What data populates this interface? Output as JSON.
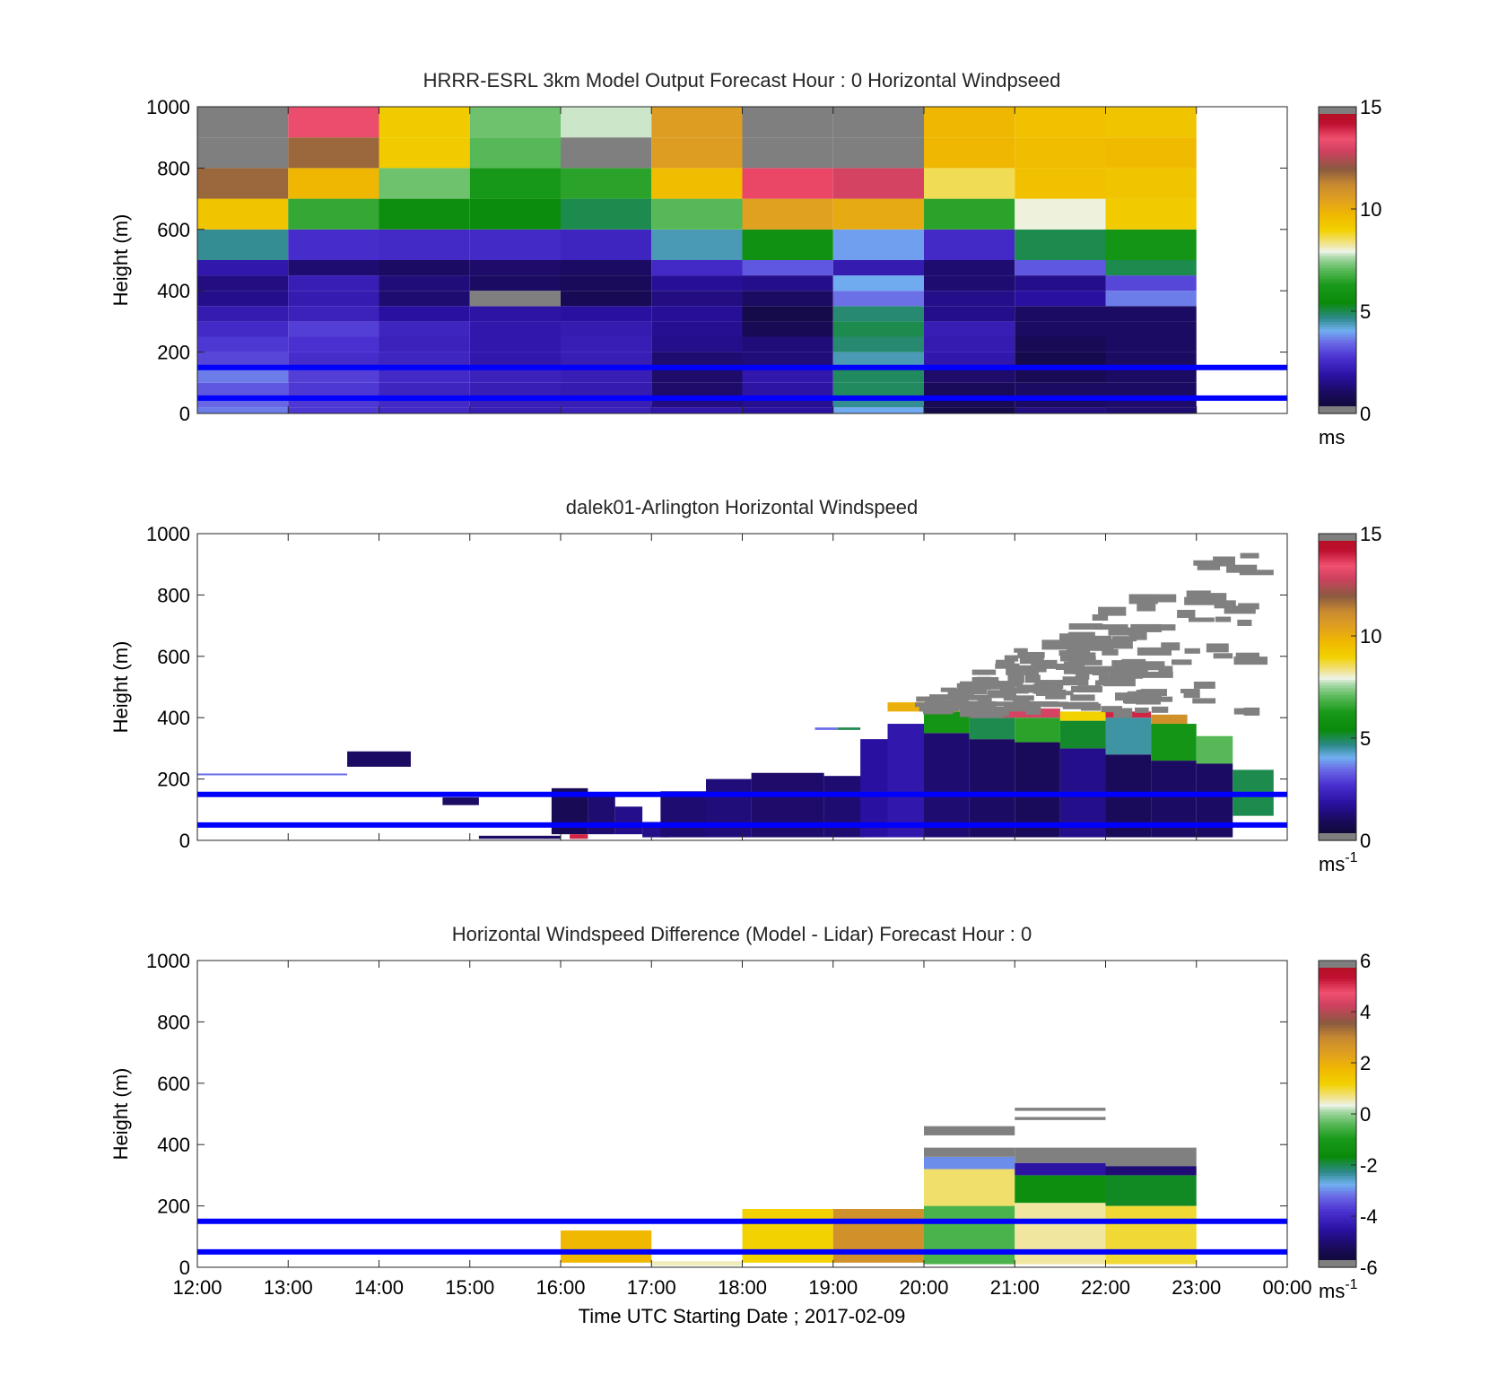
{
  "figure": {
    "xlabel": "Time UTC  Starting Date ; 2017-02-09",
    "x_tick_labels": [
      "12:00",
      "13:00",
      "14:00",
      "15:00",
      "16:00",
      "17:00",
      "18:00",
      "19:00",
      "20:00",
      "21:00",
      "22:00",
      "23:00",
      "00:00"
    ],
    "y_tick_labels": [
      "0",
      "200",
      "400",
      "600",
      "800",
      "1000"
    ],
    "ylabel": "Height (m)"
  },
  "chart_data": [
    {
      "type": "heatmap",
      "title": "HRRR-ESRL 3km Model Output   Forecast Hour : 0 Horizontal Windpseed",
      "ylabel": "Height (m)",
      "xlim": [
        12,
        24
      ],
      "ylim": [
        0,
        1000
      ],
      "colorbar": {
        "min": 0,
        "max": 15,
        "ticks": [
          "0",
          "5",
          "10",
          "15"
        ],
        "unit": "ms"
      },
      "reference_lines_m": [
        150,
        50
      ],
      "time_columns_h": [
        12,
        13,
        14,
        15,
        16,
        17,
        18,
        19,
        20,
        21,
        22
      ],
      "height_levels_m": [
        [
          0,
          20
        ],
        [
          20,
          50
        ],
        [
          50,
          100
        ],
        [
          100,
          150
        ],
        [
          150,
          200
        ],
        [
          200,
          250
        ],
        [
          250,
          300
        ],
        [
          300,
          350
        ],
        [
          350,
          400
        ],
        [
          400,
          450
        ],
        [
          450,
          500
        ],
        [
          500,
          600
        ],
        [
          600,
          700
        ],
        [
          700,
          800
        ],
        [
          800,
          900
        ],
        [
          900,
          1000
        ]
      ],
      "values_ms": [
        [
          3.6,
          2.8,
          2.5,
          2.2,
          2.3,
          2.0,
          1.8,
          4.0,
          0.6,
          1.4,
          1.2
        ],
        [
          3.4,
          2.8,
          2.5,
          2.2,
          2.2,
          1.4,
          1.6,
          4.6,
          0.8,
          1.0,
          1.1
        ],
        [
          3.2,
          2.8,
          2.4,
          2.2,
          2.1,
          1.1,
          1.9,
          4.9,
          0.9,
          1.0,
          1.0
        ],
        [
          3.6,
          2.9,
          2.5,
          2.3,
          2.2,
          1.1,
          2.0,
          4.9,
          1.1,
          0.8,
          1.0
        ],
        [
          3.0,
          2.6,
          2.4,
          2.0,
          2.2,
          1.2,
          1.3,
          4.4,
          2.0,
          0.7,
          1.0
        ],
        [
          2.8,
          2.7,
          2.3,
          2.0,
          2.2,
          1.5,
          1.3,
          4.8,
          2.1,
          0.8,
          1.0
        ],
        [
          2.5,
          2.9,
          2.4,
          2.0,
          2.1,
          1.6,
          0.8,
          5.0,
          2.2,
          1.0,
          1.0
        ],
        [
          2.1,
          2.3,
          1.8,
          1.9,
          1.8,
          1.7,
          0.6,
          4.8,
          1.5,
          1.0,
          1.0
        ],
        [
          1.5,
          2.1,
          1.2,
          15.2,
          0.8,
          1.4,
          1.0,
          3.5,
          1.5,
          1.8,
          3.6
        ],
        [
          1.4,
          2.2,
          1.3,
          1.0,
          0.9,
          1.7,
          1.5,
          4.0,
          1.2,
          1.5,
          3.0
        ],
        [
          2.0,
          1.2,
          1.0,
          1.1,
          1.0,
          2.5,
          3.2,
          2.1,
          1.2,
          3.2,
          5.0
        ],
        [
          4.6,
          2.6,
          2.5,
          2.5,
          2.4,
          4.4,
          5.8,
          3.9,
          2.5,
          5.0,
          6.0
        ],
        [
          9.4,
          6.6,
          5.6,
          5.5,
          5.0,
          7.0,
          10.5,
          10.2,
          6.5,
          8.0,
          9.2
        ],
        [
          11.8,
          9.8,
          7.2,
          6.2,
          6.5,
          9.6,
          13.6,
          13.0,
          8.6,
          9.5,
          9.4
        ],
        [
          15.2,
          11.8,
          9.2,
          7.0,
          15.5,
          10.6,
          15.2,
          15.2,
          9.8,
          9.6,
          9.7
        ],
        [
          15.2,
          13.4,
          9.2,
          7.2,
          7.8,
          10.6,
          15.2,
          15.2,
          9.8,
          9.5,
          9.4
        ]
      ]
    },
    {
      "type": "heatmap",
      "title": "dalek01-Arlington  Horizontal Windspeed",
      "ylabel": "Height (m)",
      "xlim": [
        12,
        24
      ],
      "ylim": [
        0,
        1000
      ],
      "colorbar": {
        "min": 0,
        "max": 15,
        "ticks": [
          "0",
          "5",
          "10",
          "15"
        ],
        "unit": "ms",
        "unit_superscript": "-1"
      },
      "reference_lines_m": [
        150,
        50
      ],
      "observations": [
        {
          "t0": 12.0,
          "t1": 13.65,
          "h0": 212,
          "h1": 218,
          "v": 3.5
        },
        {
          "t0": 13.65,
          "t1": 14.35,
          "h0": 240,
          "h1": 290,
          "v": 1.0
        },
        {
          "t0": 14.7,
          "t1": 15.1,
          "h0": 115,
          "h1": 140,
          "v": 1.0
        },
        {
          "t0": 15.1,
          "t1": 16.0,
          "h0": 5,
          "h1": 15,
          "v": 1.0
        },
        {
          "t0": 15.9,
          "t1": 16.3,
          "h0": 20,
          "h1": 170,
          "v": 0.8
        },
        {
          "t0": 16.1,
          "t1": 16.3,
          "h0": 5,
          "h1": 20,
          "v": 14.0
        },
        {
          "t0": 16.3,
          "t1": 16.6,
          "h0": 20,
          "h1": 150,
          "v": 1.2
        },
        {
          "t0": 16.6,
          "t1": 16.9,
          "h0": 20,
          "h1": 110,
          "v": 1.5
        },
        {
          "t0": 16.9,
          "t1": 17.2,
          "h0": 10,
          "h1": 60,
          "v": 1.5
        },
        {
          "t0": 17.1,
          "t1": 17.6,
          "h0": 10,
          "h1": 160,
          "v": 1.2
        },
        {
          "t0": 17.6,
          "t1": 18.1,
          "h0": 10,
          "h1": 200,
          "v": 1.3
        },
        {
          "t0": 18.1,
          "t1": 18.9,
          "h0": 10,
          "h1": 220,
          "v": 1.1
        },
        {
          "t0": 18.9,
          "t1": 19.35,
          "h0": 10,
          "h1": 210,
          "v": 1.2
        },
        {
          "t0": 18.8,
          "t1": 19.05,
          "h0": 360,
          "h1": 368,
          "v": 3.5
        },
        {
          "t0": 19.05,
          "t1": 19.3,
          "h0": 360,
          "h1": 368,
          "v": 5.0
        },
        {
          "t0": 19.3,
          "t1": 19.6,
          "h0": 10,
          "h1": 330,
          "v": 1.8
        },
        {
          "t0": 19.6,
          "t1": 20.0,
          "h0": 10,
          "h1": 380,
          "v": 2.0
        },
        {
          "t0": 20.0,
          "t1": 20.5,
          "h0": 10,
          "h1": 350,
          "v": 1.2
        },
        {
          "t0": 20.5,
          "t1": 21.0,
          "h0": 10,
          "h1": 330,
          "v": 1.0
        },
        {
          "t0": 21.0,
          "t1": 21.5,
          "h0": 10,
          "h1": 320,
          "v": 0.9
        },
        {
          "t0": 21.5,
          "t1": 22.0,
          "h0": 10,
          "h1": 300,
          "v": 1.5
        },
        {
          "t0": 22.0,
          "t1": 22.5,
          "h0": 10,
          "h1": 280,
          "v": 0.9
        },
        {
          "t0": 22.5,
          "t1": 23.0,
          "h0": 10,
          "h1": 260,
          "v": 1.0
        },
        {
          "t0": 23.0,
          "t1": 23.4,
          "h0": 10,
          "h1": 250,
          "v": 1.0
        },
        {
          "t0": 23.4,
          "t1": 23.85,
          "h0": 80,
          "h1": 230,
          "v": 5.0
        },
        {
          "t0": 20.0,
          "t1": 20.5,
          "h0": 350,
          "h1": 420,
          "v": 6.0
        },
        {
          "t0": 20.5,
          "t1": 21.0,
          "h0": 330,
          "h1": 400,
          "v": 5.0
        },
        {
          "t0": 21.0,
          "t1": 21.5,
          "h0": 320,
          "h1": 400,
          "v": 6.5
        },
        {
          "t0": 21.5,
          "t1": 22.0,
          "h0": 300,
          "h1": 390,
          "v": 5.2
        },
        {
          "t0": 22.0,
          "t1": 22.5,
          "h0": 280,
          "h1": 400,
          "v": 4.5
        },
        {
          "t0": 22.5,
          "t1": 23.0,
          "h0": 260,
          "h1": 380,
          "v": 6.0
        },
        {
          "t0": 23.0,
          "t1": 23.4,
          "h0": 250,
          "h1": 340,
          "v": 7.0
        },
        {
          "t0": 19.6,
          "t1": 20.5,
          "h0": 420,
          "h1": 450,
          "v": 10.0
        },
        {
          "t0": 20.5,
          "t1": 21.5,
          "h0": 400,
          "h1": 430,
          "v": 13.0
        },
        {
          "t0": 21.5,
          "t1": 22.0,
          "h0": 390,
          "h1": 420,
          "v": 9.0
        },
        {
          "t0": 22.0,
          "t1": 22.5,
          "h0": 400,
          "h1": 420,
          "v": 14.0
        },
        {
          "t0": 22.5,
          "t1": 22.9,
          "h0": 380,
          "h1": 410,
          "v": 11.0
        }
      ],
      "missing_flag_ranges": [
        {
          "t0": 19.0,
          "t1": 24.0,
          "h0": 400,
          "h1": 1000,
          "v": "out-of-range"
        }
      ]
    },
    {
      "type": "heatmap",
      "title": "Horizontal Windspeed Difference (Model - Lidar) Forecast Hour : 0",
      "ylabel": "Height (m)",
      "xlabel": "Time UTC  Starting Date ; 2017-02-09",
      "xlim": [
        12,
        24
      ],
      "ylim": [
        0,
        1000
      ],
      "colorbar": {
        "min": -6,
        "max": 6,
        "ticks": [
          "-6",
          "-4",
          "-2",
          "0",
          "2",
          "4",
          "6"
        ],
        "unit": "ms",
        "unit_superscript": "-1"
      },
      "reference_lines_m": [
        150,
        50
      ],
      "differences": [
        {
          "t0": 16.0,
          "t1": 17.0,
          "h0": 15,
          "h1": 120,
          "v": 1.8
        },
        {
          "t0": 17.0,
          "t1": 18.0,
          "h0": 5,
          "h1": 20,
          "v": 0.5
        },
        {
          "t0": 18.0,
          "t1": 19.0,
          "h0": 15,
          "h1": 190,
          "v": 1.2
        },
        {
          "t0": 19.0,
          "t1": 20.0,
          "h0": 15,
          "h1": 190,
          "v": 2.8
        },
        {
          "t0": 20.0,
          "t1": 21.0,
          "h0": 10,
          "h1": 200,
          "v": -0.5
        },
        {
          "t0": 20.0,
          "t1": 21.0,
          "h0": 200,
          "h1": 320,
          "v": 0.8
        },
        {
          "t0": 20.0,
          "t1": 21.0,
          "h0": 320,
          "h1": 360,
          "v": -3.0
        },
        {
          "t0": 21.0,
          "t1": 22.0,
          "h0": 10,
          "h1": 210,
          "v": 0.6
        },
        {
          "t0": 21.0,
          "t1": 22.0,
          "h0": 210,
          "h1": 300,
          "v": -1.5
        },
        {
          "t0": 21.0,
          "t1": 22.0,
          "h0": 300,
          "h1": 340,
          "v": -4.5
        },
        {
          "t0": 22.0,
          "t1": 23.0,
          "h0": 10,
          "h1": 200,
          "v": 1.0
        },
        {
          "t0": 22.0,
          "t1": 23.0,
          "h0": 200,
          "h1": 300,
          "v": -1.8
        },
        {
          "t0": 22.0,
          "t1": 23.0,
          "h0": 300,
          "h1": 330,
          "v": -5.0
        }
      ]
    }
  ]
}
